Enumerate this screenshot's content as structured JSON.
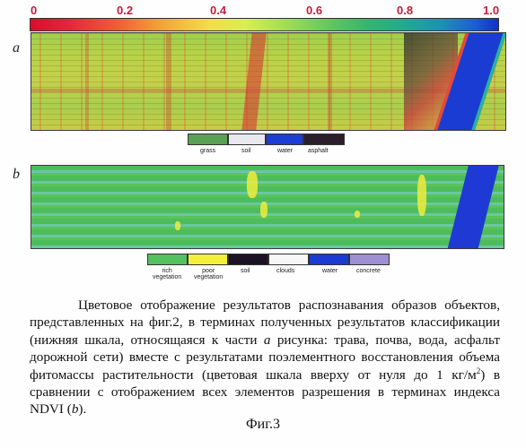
{
  "scale": {
    "ticks": [
      "0",
      "0.2",
      "0.4",
      "0.6",
      "0.8",
      "1.0"
    ],
    "colors": [
      "#d4102a",
      "#f4a33a",
      "#f3dc4a",
      "#5fc85e",
      "#23a98e",
      "#1330c6"
    ]
  },
  "panel_a": {
    "letter": "a",
    "legend": [
      {
        "label": "grass",
        "color": "#5aa155"
      },
      {
        "label": "soil",
        "color": "#e8e8ee"
      },
      {
        "label": "water",
        "color": "#1c3dd6"
      },
      {
        "label": "asphalt",
        "color": "#2a1f2a"
      }
    ]
  },
  "panel_b": {
    "letter": "b",
    "legend": [
      {
        "label": "rich vegetation",
        "line1": "rich",
        "line2": "vegetation",
        "color": "#53c15f"
      },
      {
        "label": "poor vegetation",
        "line1": "poor",
        "line2": "vegetation",
        "color": "#f3ef3c"
      },
      {
        "label": "soil",
        "line1": "soil",
        "line2": "",
        "color": "#1b1324"
      },
      {
        "label": "clouds",
        "line1": "clouds",
        "line2": "",
        "color": "#f7f7f7"
      },
      {
        "label": "water",
        "line1": "water",
        "line2": "",
        "color": "#1b3bd3"
      },
      {
        "label": "concrete",
        "line1": "concrete",
        "line2": "",
        "color": "#9d8fd2"
      }
    ]
  },
  "caption": {
    "part1": "Цветовое отображение результатов распознавания образов объектов, представленных на фиг.2, в терминах полученных результатов классификации (нижняя шкала, относящаяся к части ",
    "a_italic": "a",
    "part2": " рисунка: трава, почва, вода, асфальт дорожной сети) вместе с результатами поэлементного восстановления объема фитомассы растительности (цветовая шкала вверху от нуля до 1 кг/м",
    "sup": "2",
    "part3": ") в сравнении с отображением всех элементов разрешения в терминах индекса NDVI (",
    "b_italic": "b",
    "part4": ")."
  },
  "figure_label": "Фиг.3"
}
